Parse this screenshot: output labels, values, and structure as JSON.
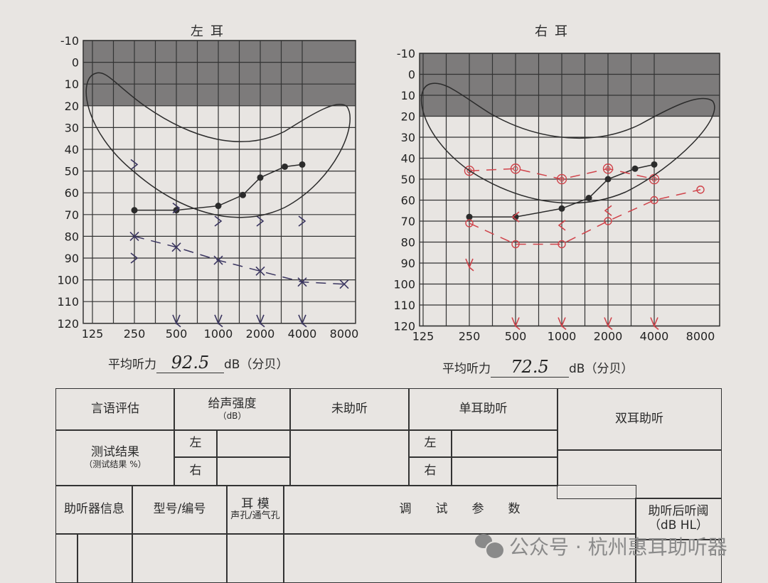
{
  "left_ear": {
    "title": "左耳",
    "avg_label": "平均听力",
    "avg_value": "92.5",
    "avg_unit": "dB（分贝）"
  },
  "right_ear": {
    "title": "右耳",
    "avg_label": "平均听力",
    "avg_value": "72.5",
    "avg_unit": "dB（分贝）"
  },
  "chart_data": [
    {
      "type": "scatter",
      "title": "左耳",
      "x_scale": "log2",
      "x_ticks": [
        "125",
        "250",
        "500",
        "1000",
        "2000",
        "4000",
        "8000"
      ],
      "y_ticks": [
        "-10",
        "0",
        "10",
        "20",
        "30",
        "40",
        "50",
        "60",
        "70",
        "80",
        "90",
        "100",
        "110",
        "120"
      ],
      "ylim": [
        -10,
        120
      ],
      "y_inverted": true,
      "grid": true,
      "shaded_band": [
        -10,
        20
      ],
      "colors": {
        "ink": "#2b2b2b",
        "pen": "#3a3560",
        "band": "#7d7b7b"
      },
      "series": [
        {
          "marker": "dot",
          "color": "#2b2b2b",
          "connected": true,
          "x": [
            250,
            500,
            1000,
            1500,
            2000,
            3000,
            4000
          ],
          "y": [
            68,
            68,
            66,
            61,
            53,
            48,
            47
          ]
        },
        {
          "marker": "x",
          "color": "#3a3560",
          "connected": true,
          "dashed": true,
          "x": [
            250,
            500,
            1000,
            2000,
            4000,
            8000
          ],
          "y": [
            80,
            85,
            91,
            96,
            101,
            102
          ]
        },
        {
          "marker": ">",
          "color": "#3a3560",
          "connected": false,
          "x": [
            250,
            250,
            500,
            1000,
            2000,
            4000
          ],
          "y": [
            47,
            90,
            67,
            73,
            73,
            73
          ]
        },
        {
          "marker": "no-response",
          "color": "#3a3560",
          "connected": false,
          "x": [
            500,
            1000,
            2000,
            4000
          ],
          "y": [
            120,
            120,
            120,
            120
          ]
        }
      ]
    },
    {
      "type": "scatter",
      "title": "右耳",
      "x_scale": "log2",
      "x_ticks": [
        "125",
        "250",
        "500",
        "1000",
        "2000",
        "4000",
        "8000"
      ],
      "y_ticks": [
        "-10",
        "0",
        "10",
        "20",
        "30",
        "40",
        "50",
        "60",
        "70",
        "80",
        "90",
        "100",
        "110",
        "120"
      ],
      "ylim": [
        -10,
        120
      ],
      "y_inverted": true,
      "grid": true,
      "shaded_band": [
        -10,
        20
      ],
      "colors": {
        "ink": "#2b2b2b",
        "pen": "#d0434a",
        "band": "#7d7b7b"
      },
      "series": [
        {
          "marker": "dot",
          "color": "#2b2b2b",
          "connected": true,
          "x": [
            250,
            500,
            1000,
            1500,
            2000,
            3000,
            4000
          ],
          "y": [
            68,
            68,
            64,
            59,
            50,
            45,
            43
          ]
        },
        {
          "marker": "circle",
          "color": "#d0434a",
          "connected": true,
          "dashed": true,
          "x": [
            250,
            500,
            1000,
            2000,
            4000,
            8000
          ],
          "y": [
            71,
            81,
            81,
            70,
            60,
            55
          ]
        },
        {
          "marker": "double-circle",
          "color": "#d0434a",
          "connected": true,
          "dashed": true,
          "x": [
            250,
            500,
            1000,
            2000,
            4000
          ],
          "y": [
            46,
            45,
            50,
            45,
            50
          ]
        },
        {
          "marker": "<",
          "color": "#d0434a",
          "connected": false,
          "x": [
            500,
            1000,
            2000
          ],
          "y": [
            68,
            72,
            65
          ]
        },
        {
          "marker": "no-response",
          "color": "#d0434a",
          "connected": false,
          "x": [
            250,
            500,
            1000,
            2000,
            4000
          ],
          "y": [
            92,
            120,
            120,
            120,
            120
          ]
        }
      ]
    }
  ],
  "table": {
    "speech_eval": "言语评估",
    "intensity": "给声强度",
    "intensity_unit": "（dB）",
    "unaided": "未助听",
    "monaural": "单耳助听",
    "binaural": "双耳助听",
    "result": "测试结果",
    "result_pct": "（测试结果 %）",
    "left": "左",
    "right": "右",
    "aid_info": "助听器信息",
    "model": "型号/编号",
    "earmold": "耳 模",
    "earmold_sub": "声孔/通气孔",
    "fitting_params": "调　　试　　参　　数",
    "aided_threshold": "助听后听阈",
    "aided_threshold_unit": "（dB HL）"
  },
  "watermark": "公众号 · 杭州惠耳助听器"
}
